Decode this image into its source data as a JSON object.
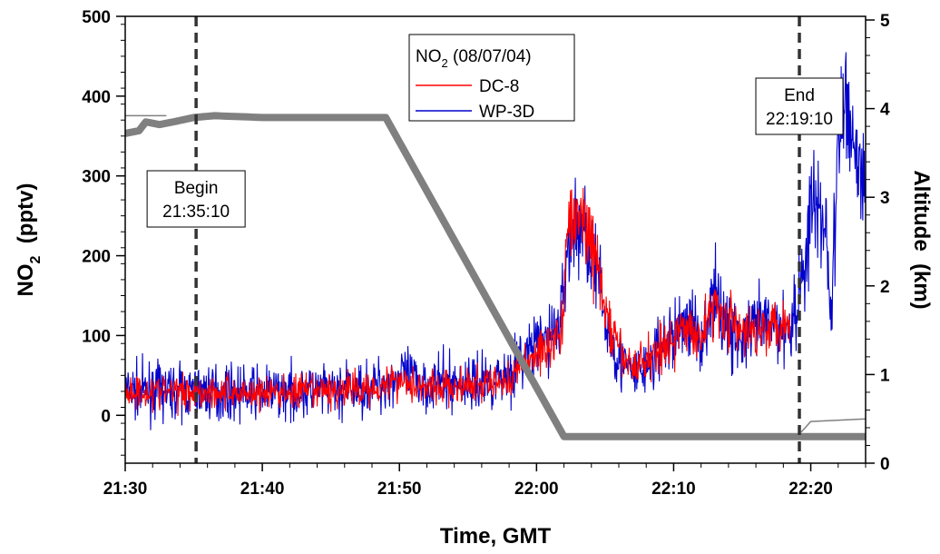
{
  "chart_data": {
    "type": "line",
    "legend": {
      "title": "NO",
      "title_sub": "2",
      "title_suffix": " (08/07/04)",
      "placement": "top-center",
      "entries": [
        {
          "name": "DC-8",
          "color": "#ff0000"
        },
        {
          "name": "WP-3D",
          "color": "#0000cc"
        }
      ]
    },
    "xlabel": "Time, GMT",
    "ylabel": {
      "main": "NO",
      "sub": "2",
      "suffix": "  (pptv)"
    },
    "y2label": "Altitude  (km)",
    "xlim_minutes": [
      0,
      54
    ],
    "ylim": [
      -60,
      500
    ],
    "y2lim": [
      0,
      5
    ],
    "x_ticks": [
      "21:30",
      "21:40",
      "21:50",
      "22:00",
      "22:10",
      "22:20"
    ],
    "x_tick_minutes": [
      0,
      10,
      20,
      30,
      40,
      50
    ],
    "y_ticks": [
      0,
      100,
      200,
      300,
      400,
      500
    ],
    "y2_ticks": [
      0,
      1,
      2,
      3,
      4,
      5
    ],
    "grid": false,
    "annotations": [
      {
        "line1": "Begin",
        "line2": "21:35:10",
        "minute": 5.17
      },
      {
        "line1": "End",
        "line2": "22:19:10",
        "minute": 49.17
      }
    ],
    "altitude_color": "#808080",
    "series": [
      {
        "name": "DC-8",
        "color": "#ff0000",
        "keyframes": [
          [
            0,
            30
          ],
          [
            5,
            30
          ],
          [
            10,
            28
          ],
          [
            15,
            30
          ],
          [
            18,
            35
          ],
          [
            20,
            45
          ],
          [
            22,
            35
          ],
          [
            25,
            35
          ],
          [
            27,
            40
          ],
          [
            28,
            45
          ],
          [
            29.5,
            70
          ],
          [
            31,
            90
          ],
          [
            31.8,
            100
          ],
          [
            32.2,
            230
          ],
          [
            33,
            250
          ],
          [
            33.8,
            230
          ],
          [
            34.5,
            180
          ],
          [
            35,
            130
          ],
          [
            36,
            80
          ],
          [
            37,
            60
          ],
          [
            38,
            70
          ],
          [
            39,
            85
          ],
          [
            40,
            95
          ],
          [
            41,
            110
          ],
          [
            42,
            100
          ],
          [
            43,
            140
          ],
          [
            44,
            120
          ],
          [
            45,
            100
          ],
          [
            46,
            110
          ],
          [
            47,
            115
          ],
          [
            48.5,
            120
          ]
        ]
      },
      {
        "name": "WP-3D",
        "color": "#0000cc",
        "keyframes": [
          [
            0,
            30
          ],
          [
            5,
            30
          ],
          [
            10,
            28
          ],
          [
            15,
            30
          ],
          [
            18,
            35
          ],
          [
            20,
            50
          ],
          [
            22,
            40
          ],
          [
            25,
            40
          ],
          [
            27,
            45
          ],
          [
            28,
            55
          ],
          [
            29.5,
            80
          ],
          [
            31,
            100
          ],
          [
            31.8,
            120
          ],
          [
            32.2,
            210
          ],
          [
            33,
            240
          ],
          [
            33.8,
            220
          ],
          [
            34.5,
            170
          ],
          [
            35,
            120
          ],
          [
            36,
            70
          ],
          [
            37,
            50
          ],
          [
            38,
            60
          ],
          [
            39,
            80
          ],
          [
            40,
            100
          ],
          [
            41,
            120
          ],
          [
            42,
            95
          ],
          [
            43,
            150
          ],
          [
            44,
            110
          ],
          [
            45,
            90
          ],
          [
            46,
            110
          ],
          [
            47,
            115
          ],
          [
            48.5,
            110
          ],
          [
            49.3,
            160
          ],
          [
            50,
            260
          ],
          [
            51,
            250
          ],
          [
            51.5,
            130
          ],
          [
            52,
            330
          ],
          [
            52.5,
            400
          ],
          [
            53,
            360
          ],
          [
            53.5,
            310
          ],
          [
            54,
            280
          ]
        ]
      },
      {
        "name": "Altitude",
        "color": "#808080",
        "keyframes": [
          [
            0,
            3.72
          ],
          [
            1,
            3.75
          ],
          [
            1.5,
            3.85
          ],
          [
            2.5,
            3.82
          ],
          [
            3.5,
            3.85
          ],
          [
            5,
            3.9
          ],
          [
            6.5,
            3.92
          ],
          [
            10,
            3.9
          ],
          [
            15,
            3.9
          ],
          [
            19,
            3.9
          ],
          [
            32,
            0.3
          ],
          [
            54,
            0.3
          ]
        ]
      }
    ]
  }
}
